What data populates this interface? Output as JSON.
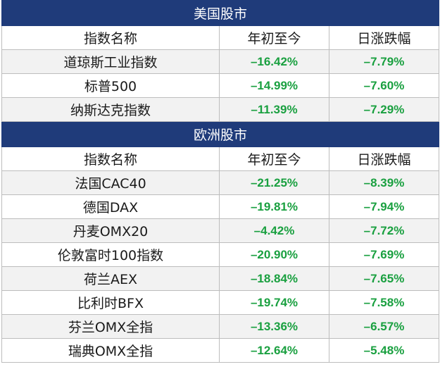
{
  "colors": {
    "header_bg": "#1f3b7a",
    "header_text": "#ffffff",
    "value_green": "#1aa040",
    "alt_row": "#f2f2f2"
  },
  "columns": [
    "指数名称",
    "年初至今",
    "日涨跌幅"
  ],
  "sections": [
    {
      "title": "美国股市",
      "rows": [
        {
          "name": "道琼斯工业指数",
          "ytd": "–16.42%",
          "daily": "–7.79%"
        },
        {
          "name": "标普500",
          "ytd": "–14.99%",
          "daily": "–7.60%"
        },
        {
          "name": "纳斯达克指数",
          "ytd": "–11.39%",
          "daily": "–7.29%"
        }
      ]
    },
    {
      "title": "欧洲股市",
      "rows": [
        {
          "name": "法国CAC40",
          "ytd": "–21.25%",
          "daily": "–8.39%"
        },
        {
          "name": "德国DAX",
          "ytd": "–19.81%",
          "daily": "–7.94%"
        },
        {
          "name": "丹麦OMX20",
          "ytd": "–4.42%",
          "daily": "–7.72%"
        },
        {
          "name": "伦敦富时100指数",
          "ytd": "–20.90%",
          "daily": "–7.69%"
        },
        {
          "name": "荷兰AEX",
          "ytd": "–18.84%",
          "daily": "–7.65%"
        },
        {
          "name": "比利时BFX",
          "ytd": "–19.74%",
          "daily": "–7.58%"
        },
        {
          "name": "芬兰OMX全指",
          "ytd": "–13.36%",
          "daily": "–6.57%"
        },
        {
          "name": "瑞典OMX全指",
          "ytd": "–12.64%",
          "daily": "–5.48%"
        }
      ]
    }
  ]
}
